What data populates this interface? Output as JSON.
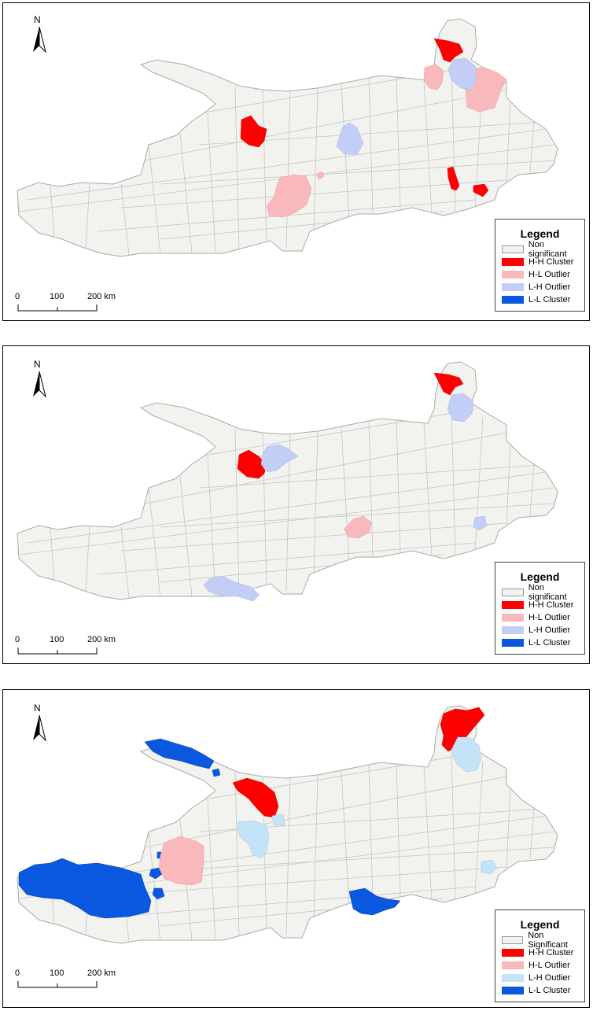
{
  "north_label": "N",
  "scale": {
    "labels": [
      "0",
      "100",
      "200 km"
    ]
  },
  "colors": {
    "non_significant": "#f2f2ef",
    "hh_cluster": "#ff0000",
    "hl_outlier": "#f9b8bc",
    "lh_outlier": "#c2cef5",
    "lh_outlier_alt": "#c5e3f7",
    "ll_cluster": "#0a57e0",
    "boundary": "#b9b9b9"
  },
  "panels": [
    {
      "legend": {
        "title": "Legend",
        "items": [
          {
            "label": "Non significant",
            "color": "#f2f2ef"
          },
          {
            "label": "H-H Cluster",
            "color": "#ff0000"
          },
          {
            "label": "H-L Outlier",
            "color": "#f9b8bc"
          },
          {
            "label": "L-H Outlier",
            "color": "#c2cef5"
          },
          {
            "label": "L-L Cluster",
            "color": "#0a57e0"
          }
        ]
      }
    },
    {
      "legend": {
        "title": "Legend",
        "items": [
          {
            "label": "Non significant",
            "color": "#f2f2ef"
          },
          {
            "label": "H-H Cluster",
            "color": "#ff0000"
          },
          {
            "label": "H-L Outlier",
            "color": "#f9b8bc"
          },
          {
            "label": "L-H Outlier",
            "color": "#c2cef5"
          },
          {
            "label": "L-L Cluster",
            "color": "#0a57e0"
          }
        ]
      }
    },
    {
      "legend": {
        "title": "Legend",
        "items": [
          {
            "label": "Non Significant",
            "color": "#f2f2ef"
          },
          {
            "label": "H-H Cluster",
            "color": "#ff0000"
          },
          {
            "label": "H-L Outlier",
            "color": "#f9b8bc"
          },
          {
            "label": "L-H Outlier",
            "color": "#c5e3f7"
          },
          {
            "label": "L-L Cluster",
            "color": "#0a57e0"
          }
        ]
      }
    }
  ]
}
